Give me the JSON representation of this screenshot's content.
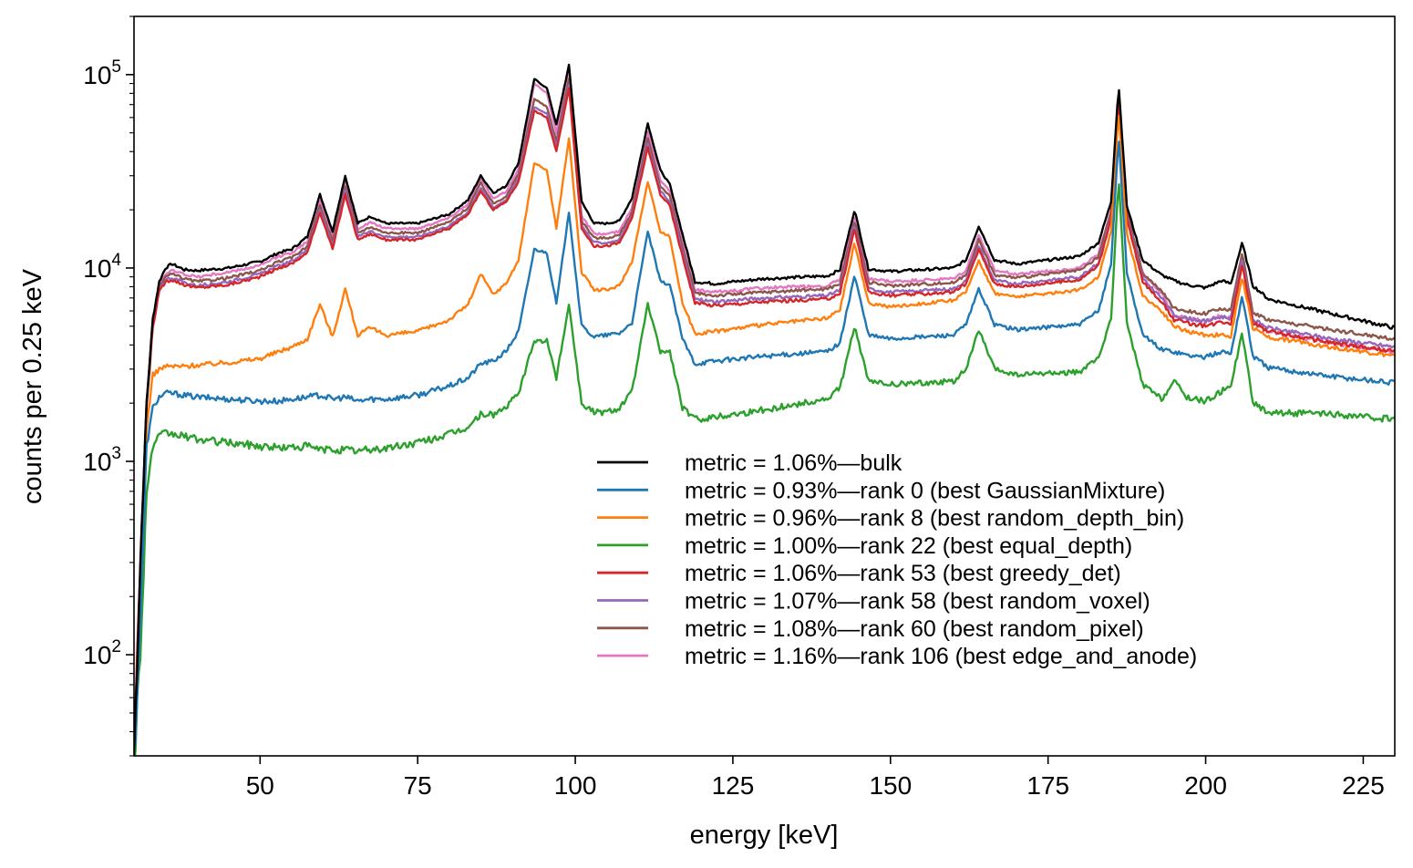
{
  "chart_data": {
    "type": "line",
    "xlabel": "energy [keV]",
    "ylabel": "counts per 0.25 keV",
    "xlim": [
      30,
      230
    ],
    "ylim": [
      30,
      200000
    ],
    "yscale": "log",
    "grid": false,
    "legend_placement": "lower-right",
    "x_ticks": [
      50,
      75,
      100,
      125,
      150,
      175,
      200,
      225
    ],
    "y_ticks": [
      {
        "value": 100,
        "base": "10",
        "exp": "2"
      },
      {
        "value": 1000,
        "base": "10",
        "exp": "3"
      },
      {
        "value": 10000,
        "base": "10",
        "exp": "4"
      },
      {
        "value": 100000,
        "base": "10",
        "exp": "5"
      }
    ],
    "x": [
      30,
      31,
      32,
      33,
      34,
      35,
      36,
      38,
      40,
      45,
      50,
      53,
      55,
      57.5,
      59.5,
      61.5,
      63.5,
      65.5,
      67.5,
      70,
      75,
      80,
      83,
      85,
      87,
      89,
      91,
      93.5,
      95.5,
      97,
      99,
      101,
      103,
      105,
      107,
      109,
      111.5,
      113.5,
      115,
      117,
      119,
      122,
      130,
      140,
      142,
      144.3,
      146.5,
      150,
      160,
      162,
      164,
      166.5,
      170,
      180,
      183,
      185,
      186.2,
      187.5,
      190,
      193,
      195,
      197,
      200,
      202.5,
      204,
      205.8,
      207.5,
      210,
      220,
      230
    ],
    "series": [
      {
        "name": "metric = 1.06%—bulk",
        "color": "#000000",
        "values": [
          30,
          300,
          2000,
          5500,
          8500,
          10000,
          10500,
          9800,
          9700,
          10000,
          10800,
          12000,
          12500,
          14500,
          24000,
          15500,
          30000,
          17000,
          18500,
          17000,
          17000,
          19000,
          22500,
          30000,
          24500,
          26500,
          35000,
          95000,
          85000,
          55000,
          112000,
          22000,
          17000,
          17000,
          17500,
          23000,
          56000,
          32000,
          27000,
          15000,
          8500,
          8300,
          8800,
          9100,
          9800,
          20000,
          9900,
          9600,
          10000,
          11000,
          16500,
          11000,
          10500,
          11500,
          13500,
          22000,
          88000,
          21000,
          11000,
          9200,
          8600,
          8200,
          7900,
          8600,
          8300,
          13500,
          8100,
          6900,
          5800,
          4900
        ]
      },
      {
        "name": "metric = 0.93%—rank 0 (best GaussianMixture)",
        "color": "#1f77b4",
        "values": [
          30,
          150,
          1200,
          1900,
          2150,
          2250,
          2250,
          2200,
          2150,
          2100,
          2050,
          2050,
          2100,
          2150,
          2200,
          2100,
          2150,
          2050,
          2100,
          2100,
          2200,
          2450,
          2700,
          3200,
          3300,
          3700,
          4700,
          12500,
          12000,
          6500,
          19500,
          5000,
          4400,
          4500,
          4600,
          5200,
          15500,
          8500,
          8200,
          4300,
          3200,
          3300,
          3500,
          3700,
          4100,
          9200,
          4500,
          4300,
          4500,
          5100,
          7800,
          5100,
          4800,
          5100,
          6000,
          10500,
          48000,
          9500,
          4500,
          3800,
          3700,
          3550,
          3450,
          3700,
          3600,
          7200,
          3500,
          3050,
          2750,
          2550
        ]
      },
      {
        "name": "metric = 0.96%—rank 8 (best random_depth_bin)",
        "color": "#ff7f0e",
        "values": [
          30,
          200,
          1500,
          2800,
          3000,
          3100,
          3100,
          3100,
          3150,
          3250,
          3400,
          3700,
          3900,
          4300,
          6500,
          4400,
          7800,
          4500,
          4900,
          4500,
          4700,
          5400,
          6500,
          9300,
          7300,
          8300,
          11000,
          35000,
          32000,
          16000,
          47000,
          9500,
          7700,
          7700,
          8100,
          10800,
          28000,
          15500,
          14500,
          6600,
          4600,
          4700,
          5100,
          5500,
          6100,
          13500,
          6600,
          6300,
          6800,
          7500,
          11000,
          7400,
          7100,
          7700,
          9000,
          15500,
          65000,
          15000,
          7200,
          6000,
          5000,
          4700,
          4500,
          4500,
          4400,
          9000,
          4900,
          4400,
          3900,
          3500
        ]
      },
      {
        "name": "metric = 1.00%—rank 22 (best equal_depth)",
        "color": "#2ca02c",
        "values": [
          30,
          100,
          700,
          1200,
          1350,
          1400,
          1380,
          1350,
          1300,
          1250,
          1200,
          1180,
          1180,
          1200,
          1150,
          1150,
          1150,
          1130,
          1150,
          1170,
          1250,
          1380,
          1500,
          1750,
          1750,
          1900,
          2250,
          4200,
          4200,
          2700,
          6500,
          2000,
          1800,
          1800,
          1900,
          2300,
          6500,
          3700,
          3700,
          1900,
          1650,
          1700,
          1850,
          2100,
          2400,
          5000,
          2600,
          2500,
          2600,
          3000,
          4800,
          3000,
          2800,
          2900,
          3400,
          5500,
          29000,
          5200,
          2500,
          2100,
          2600,
          2150,
          2050,
          2300,
          2500,
          4600,
          2000,
          1800,
          1750,
          1650
        ]
      },
      {
        "name": "metric = 1.06%—rank 53 (best greedy_det)",
        "color": "#d62728",
        "values": [
          30,
          280,
          1900,
          5000,
          7500,
          8500,
          8700,
          8200,
          7900,
          8200,
          9000,
          10000,
          10500,
          12000,
          19500,
          12500,
          24000,
          14000,
          15000,
          14000,
          14000,
          16000,
          19000,
          25000,
          20000,
          22000,
          28000,
          65000,
          60000,
          40000,
          85000,
          16000,
          13000,
          13000,
          13500,
          18000,
          42000,
          24000,
          21000,
          11500,
          6600,
          6400,
          6700,
          6900,
          7400,
          16000,
          7500,
          7200,
          7500,
          8300,
          12500,
          8300,
          8000,
          8700,
          10300,
          18000,
          75000,
          18000,
          8500,
          6700,
          5400,
          5200,
          5000,
          5300,
          5200,
          10500,
          5200,
          4700,
          4100,
          3700
        ]
      },
      {
        "name": "metric = 1.07%—rank 58 (best random_voxel)",
        "color": "#9467bd",
        "values": [
          30,
          280,
          1950,
          5200,
          7700,
          8700,
          8900,
          8400,
          8100,
          8500,
          9300,
          10300,
          10800,
          12400,
          20000,
          13000,
          25000,
          14500,
          15500,
          14500,
          14500,
          16500,
          19500,
          26000,
          20500,
          22500,
          29000,
          68000,
          63000,
          42000,
          88000,
          16500,
          13500,
          13500,
          14000,
          18500,
          44000,
          25000,
          22000,
          12000,
          6900,
          6700,
          7000,
          7200,
          7700,
          16500,
          7800,
          7500,
          7800,
          8600,
          13000,
          8600,
          8300,
          9000,
          10600,
          18500,
          77000,
          18500,
          8800,
          7000,
          5700,
          5500,
          5300,
          5600,
          5500,
          11000,
          5400,
          4900,
          4300,
          3900
        ]
      },
      {
        "name": "metric = 1.08%—rank 60 (best random_pixel)",
        "color": "#8c564b",
        "values": [
          30,
          290,
          2000,
          5300,
          8000,
          9000,
          9300,
          8800,
          8500,
          8900,
          9700,
          10800,
          11300,
          13000,
          21000,
          13800,
          26500,
          15200,
          16300,
          15200,
          15200,
          17300,
          20500,
          27500,
          21500,
          23500,
          30500,
          75000,
          68000,
          45000,
          95000,
          17500,
          14300,
          14300,
          14800,
          19500,
          47000,
          26500,
          23500,
          12800,
          7400,
          7200,
          7500,
          7800,
          8300,
          17500,
          8400,
          8100,
          8400,
          9200,
          14000,
          9200,
          8900,
          9700,
          11400,
          19500,
          80000,
          19500,
          9400,
          7600,
          6200,
          6000,
          5800,
          6200,
          6000,
          12000,
          5900,
          5400,
          4800,
          4300
        ]
      },
      {
        "name": "metric = 1.16%—rank 106 (best edge_and_anode)",
        "color": "#e377c2",
        "values": [
          30,
          290,
          2000,
          5400,
          8200,
          9300,
          9700,
          9300,
          9000,
          9500,
          10300,
          11500,
          12000,
          13700,
          22500,
          14700,
          28000,
          16000,
          17200,
          16000,
          16000,
          18200,
          21500,
          29000,
          22800,
          24800,
          32500,
          90000,
          80000,
          50000,
          108000,
          18500,
          15000,
          15000,
          15500,
          20500,
          51000,
          28500,
          25000,
          13500,
          7700,
          7500,
          7900,
          8100,
          8700,
          18500,
          8800,
          8500,
          8800,
          9700,
          14800,
          9700,
          9300,
          10000,
          11800,
          20000,
          82000,
          19500,
          9500,
          7400,
          5700,
          5500,
          5300,
          5700,
          5500,
          11500,
          5300,
          4700,
          4100,
          3700
        ]
      }
    ]
  }
}
